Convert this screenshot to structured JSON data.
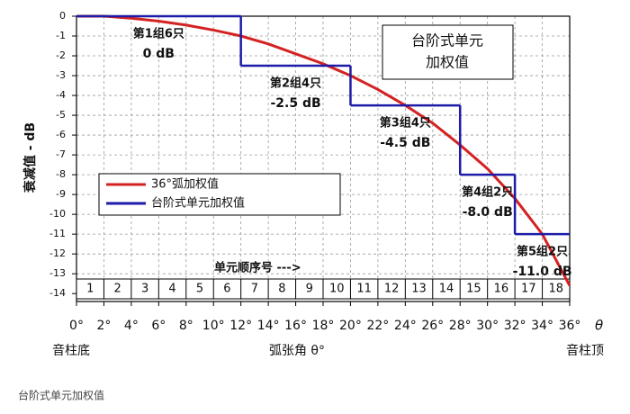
{
  "chart_data": {
    "type": "line",
    "y_label": "衰减值 - dB",
    "x_label": "弧张角 θ°",
    "x_left_label": "音柱底",
    "x_right_label": "音柱顶",
    "x_axis_symbol": "θ",
    "box_text": [
      "台阶式单元",
      "加权值"
    ],
    "element_axis_label": "单元顺序号 --->",
    "element_numbers": [
      "1",
      "2",
      "3",
      "4",
      "5",
      "6",
      "7",
      "8",
      "9",
      "10",
      "11",
      "12",
      "13",
      "14",
      "15",
      "16",
      "17",
      "18"
    ],
    "footer": "台阶式单元加权值",
    "xlim": [
      0,
      36
    ],
    "ylim": [
      -14.4,
      0
    ],
    "xticks": [
      {
        "value": 0,
        "label": "0°"
      },
      {
        "value": 2,
        "label": "2°"
      },
      {
        "value": 4,
        "label": "4°"
      },
      {
        "value": 6,
        "label": "6°"
      },
      {
        "value": 8,
        "label": "8°"
      },
      {
        "value": 10,
        "label": "10°"
      },
      {
        "value": 12,
        "label": "12°"
      },
      {
        "value": 14,
        "label": "14°"
      },
      {
        "value": 16,
        "label": "16°"
      },
      {
        "value": 18,
        "label": "18°"
      },
      {
        "value": 20,
        "label": "20°"
      },
      {
        "value": 22,
        "label": "22°"
      },
      {
        "value": 24,
        "label": "24°"
      },
      {
        "value": 26,
        "label": "26°"
      },
      {
        "value": 28,
        "label": "28°"
      },
      {
        "value": 30,
        "label": "30°"
      },
      {
        "value": 32,
        "label": "32°"
      },
      {
        "value": 34,
        "label": "34°"
      },
      {
        "value": 36,
        "label": "36°"
      }
    ],
    "yticks": [
      0,
      -1,
      -2,
      -3,
      -4,
      -5,
      -6,
      -7,
      -8,
      -9,
      -10,
      -11,
      -12,
      -13,
      -14
    ],
    "grid": true,
    "curve": {
      "name": "36°弧加权值",
      "color": "#d42222",
      "x": [
        0,
        2,
        4,
        6,
        8,
        10,
        12,
        14,
        16,
        18,
        20,
        22,
        24,
        26,
        28,
        30,
        32,
        34,
        36
      ],
      "values": [
        0,
        0,
        -0.1,
        -0.25,
        -0.45,
        -0.7,
        -1.0,
        -1.4,
        -1.9,
        -2.4,
        -3.0,
        -3.7,
        -4.5,
        -5.4,
        -6.5,
        -7.7,
        -9.2,
        -11.0,
        -13.6
      ]
    },
    "steps": {
      "name": "台阶式单元加权值",
      "color": "#1c1ca8",
      "edges": [
        0,
        12,
        20,
        28,
        32,
        36
      ],
      "values": [
        0,
        -2.5,
        -4.5,
        -8,
        -11
      ],
      "value_labels": [
        "0 dB",
        "-2.5 dB",
        "-4.5 dB",
        "-8.0 dB",
        "-11.0 dB"
      ],
      "group_labels": [
        "第1组6只",
        "第2组4只",
        "第3组4只",
        "第4组2只",
        "第5组2只"
      ]
    }
  }
}
